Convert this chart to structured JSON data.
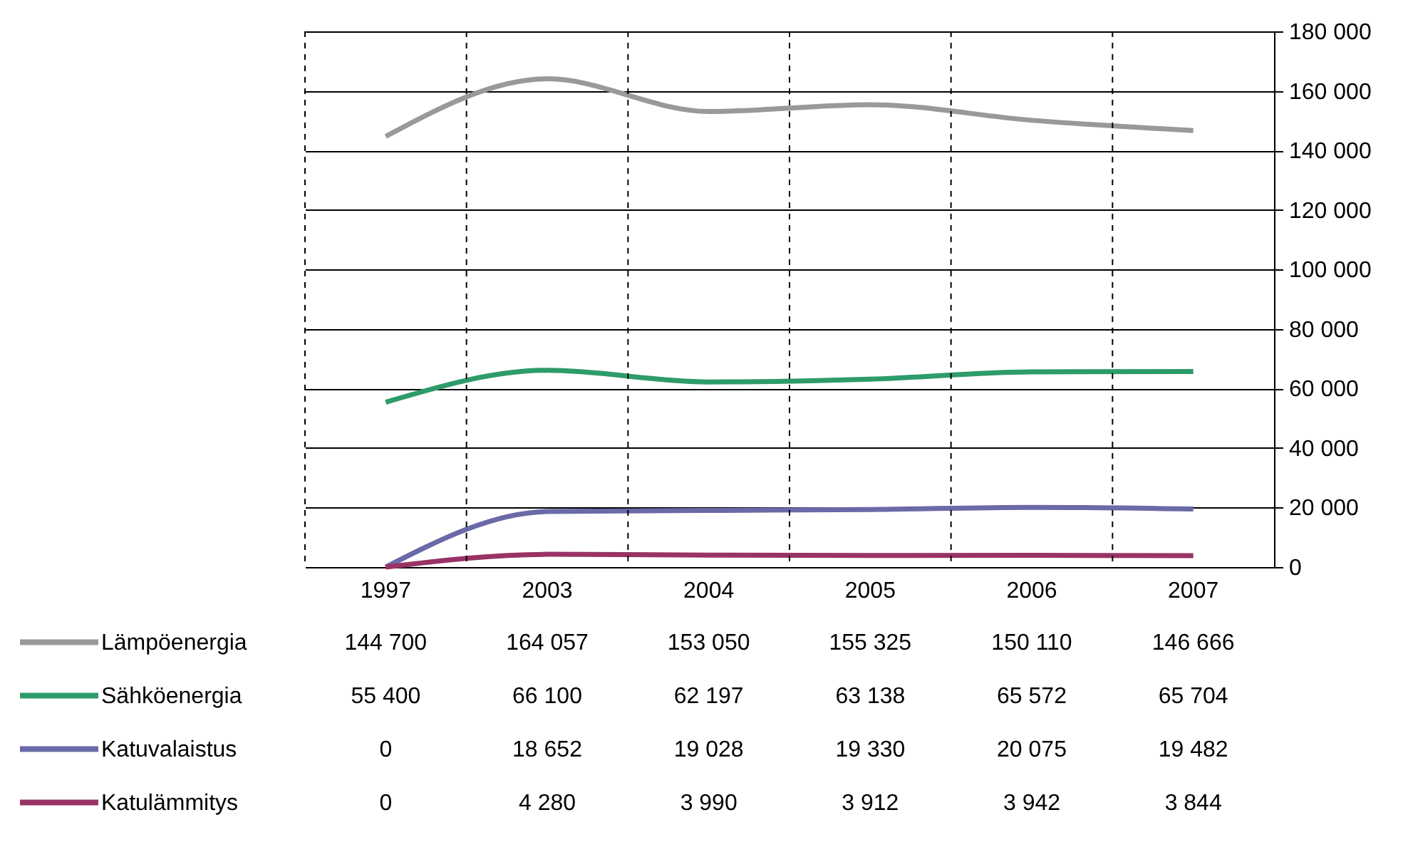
{
  "chart_data": {
    "type": "line",
    "categories": [
      "1997",
      "2003",
      "2004",
      "2005",
      "2006",
      "2007"
    ],
    "series": [
      {
        "name": "Lämpöenergia",
        "color": "#999999",
        "values": [
          144700,
          164057,
          153050,
          155325,
          150110,
          146666
        ],
        "value_labels": [
          "144 700",
          "164 057",
          "153 050",
          "155 325",
          "150 110",
          "146 666"
        ]
      },
      {
        "name": "Sähköenergia",
        "color": "#2e9b6b",
        "values": [
          55400,
          66100,
          62197,
          63138,
          65572,
          65704
        ],
        "value_labels": [
          "55 400",
          "66 100",
          "62 197",
          "63 138",
          "65 572",
          "65 704"
        ]
      },
      {
        "name": "Katuvalaistus",
        "color": "#6a6aa8",
        "values": [
          0,
          18652,
          19028,
          19330,
          20075,
          19482
        ],
        "value_labels": [
          "0",
          "18 652",
          "19 028",
          "19 330",
          "20 075",
          "19 482"
        ]
      },
      {
        "name": "Katulämmitys",
        "color": "#993366",
        "values": [
          0,
          4280,
          3990,
          3912,
          3942,
          3844
        ],
        "value_labels": [
          "0",
          "4 280",
          "3 990",
          "3 912",
          "3 942",
          "3 844"
        ]
      }
    ],
    "ylim": [
      0,
      180000
    ],
    "yticks": [
      {
        "value": 0,
        "label": "0"
      },
      {
        "value": 20000,
        "label": "20 000"
      },
      {
        "value": 40000,
        "label": "40 000"
      },
      {
        "value": 60000,
        "label": "60 000"
      },
      {
        "value": 80000,
        "label": "80 000"
      },
      {
        "value": 100000,
        "label": "100 000"
      },
      {
        "value": 120000,
        "label": "120 000"
      },
      {
        "value": 140000,
        "label": "140 000"
      },
      {
        "value": 160000,
        "label": "160 000"
      },
      {
        "value": 180000,
        "label": "180 000"
      }
    ],
    "grid": true,
    "legend": "bottom",
    "marker": "none",
    "line_style": "solid"
  }
}
